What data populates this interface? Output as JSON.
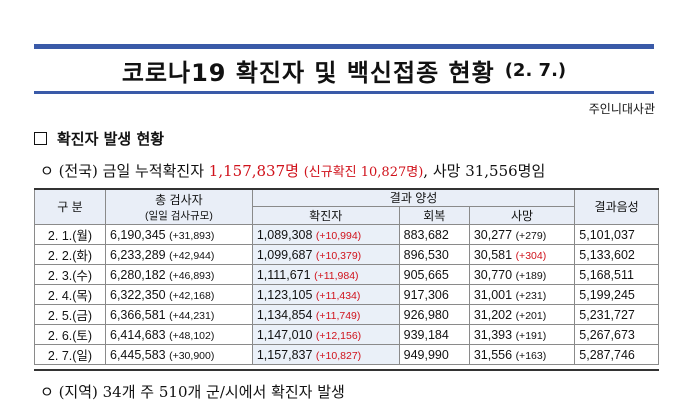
{
  "header": {
    "title": "코로나19 확진자 및 백신접종 현황",
    "date": "(2. 7.)",
    "source": "주인니대사관"
  },
  "section": {
    "label": "확진자 발생 현황"
  },
  "national": {
    "prefix": "ㅇ (전국) 금일 누적확진자",
    "total": "1,157,837명",
    "new": "(신규확진 10,827명)",
    "deaths": ", 사망 31,556명임"
  },
  "table": {
    "headers": {
      "col1": "구 분",
      "col2": "총 검사자",
      "col2_sub": "(일일 검사규모)",
      "group": "결과 양성",
      "confirmed": "확진자",
      "recovered": "회복",
      "deaths": "사망",
      "negative": "결과음성"
    },
    "rows": [
      {
        "date": "2. 1.(월)",
        "tests": "6,190,345",
        "tests_daily": "(+31,893)",
        "confirmed": "1,089,308",
        "confirmed_new": "(+10,994)",
        "recovered": "883,682",
        "deaths": "30,277",
        "deaths_new": "(+279)",
        "negative": "5,101,037"
      },
      {
        "date": "2. 2.(화)",
        "tests": "6,233,289",
        "tests_daily": "(+42,944)",
        "confirmed": "1,099,687",
        "confirmed_new": "(+10,379)",
        "recovered": "896,530",
        "deaths": "30,581",
        "deaths_new": "(+304)",
        "negative": "5,133,602"
      },
      {
        "date": "2. 3.(수)",
        "tests": "6,280,182",
        "tests_daily": "(+46,893)",
        "confirmed": "1,111,671",
        "confirmed_new": "(+11,984)",
        "recovered": "905,665",
        "deaths": "30,770",
        "deaths_new": "(+189)",
        "negative": "5,168,511"
      },
      {
        "date": "2. 4.(목)",
        "tests": "6,322,350",
        "tests_daily": "(+42,168)",
        "confirmed": "1,123,105",
        "confirmed_new": "(+11,434)",
        "recovered": "917,306",
        "deaths": "31,001",
        "deaths_new": "(+231)",
        "negative": "5,199,245"
      },
      {
        "date": "2. 5.(금)",
        "tests": "6,366,581",
        "tests_daily": "(+44,231)",
        "confirmed": "1,134,854",
        "confirmed_new": "(+11,749)",
        "recovered": "926,980",
        "deaths": "31,202",
        "deaths_new": "(+201)",
        "negative": "5,231,727"
      },
      {
        "date": "2. 6.(토)",
        "tests": "6,414,683",
        "tests_daily": "(+48,102)",
        "confirmed": "1,147,010",
        "confirmed_new": "(+12,156)",
        "recovered": "939,184",
        "deaths": "31,393",
        "deaths_new": "(+191)",
        "negative": "5,267,673"
      },
      {
        "date": "2. 7.(일)",
        "tests": "6,445,583",
        "tests_daily": "(+30,900)",
        "confirmed": "1,157,837",
        "confirmed_new": "(+10,827)",
        "recovered": "949,990",
        "deaths": "31,556",
        "deaths_new": "(+163)",
        "negative": "5,287,746"
      }
    ]
  },
  "regional": {
    "text": "ㅇ (지역) 34개 주 510개 군/시에서 확진자 발생"
  },
  "colors": {
    "accent": "#3a5aa8",
    "new_cases": "#d0121b",
    "header_bg": "#e9eef7"
  }
}
